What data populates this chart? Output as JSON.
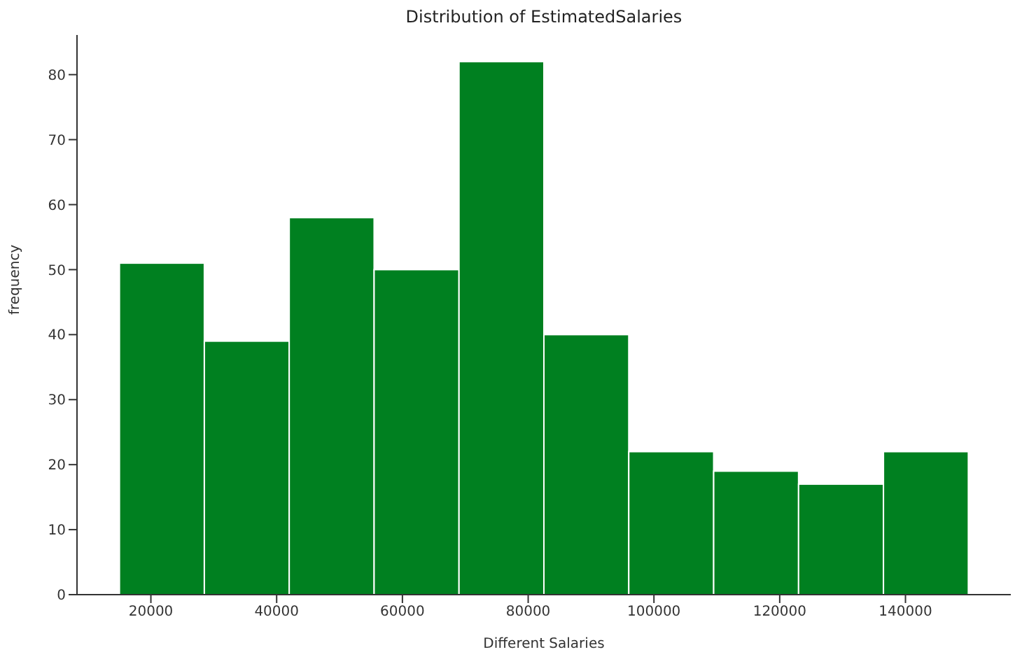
{
  "chart_data": {
    "type": "histogram",
    "title": "Distribution of EstimatedSalaries",
    "xlabel": "Different Salaries",
    "ylabel": "frequency",
    "bins": [
      15000,
      28500,
      42000,
      55500,
      69000,
      82500,
      96000,
      109500,
      123000,
      136500,
      150000
    ],
    "values": [
      51,
      39,
      58,
      50,
      82,
      40,
      22,
      19,
      17,
      22
    ],
    "color": "#008020",
    "xlim": [
      8250,
      156750
    ],
    "xticks": [
      20000,
      40000,
      60000,
      80000,
      100000,
      120000,
      140000
    ],
    "ylim": [
      0,
      86.1
    ],
    "yticks": [
      0,
      10,
      20,
      30,
      40,
      50,
      60,
      70,
      80
    ]
  }
}
